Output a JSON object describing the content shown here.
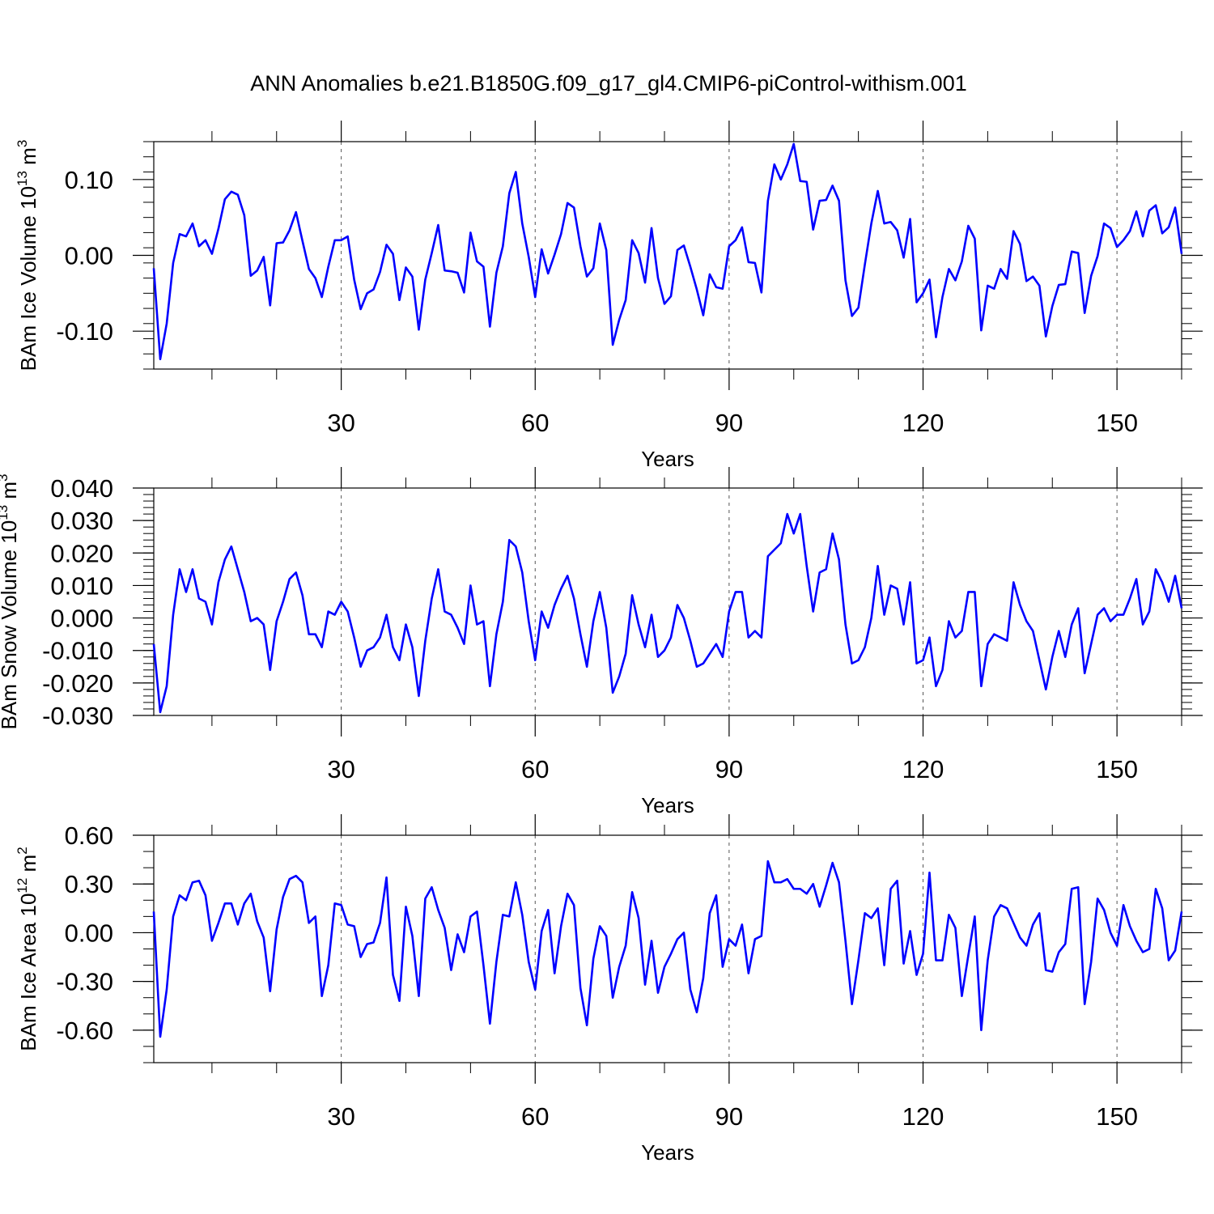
{
  "title": "ANN Anomalies b.e21.B1850G.f09_g17_gl4.CMIP6-piControl-withism.001",
  "line_color": "#0000ff",
  "chart_data": [
    {
      "type": "line",
      "panel": "ice-volume",
      "ylabel": {
        "prefix": "BAm Ice Volume 10",
        "exponent": "13",
        "unit": " m",
        "unit_exponent": "3"
      },
      "xlabel": "Years",
      "xlim": [
        1,
        160
      ],
      "ylim": [
        -0.15,
        0.15
      ],
      "x_major_ticks": [
        30,
        60,
        90,
        120,
        150
      ],
      "x_tick_labels": [
        "30",
        "60",
        "90",
        "120",
        "150"
      ],
      "x_minor_ticks": [
        10,
        20,
        40,
        50,
        70,
        80,
        100,
        110,
        130,
        140,
        160
      ],
      "y_major_ticks": [
        -0.1,
        0.0,
        0.1
      ],
      "y_tick_labels": [
        "-0.10",
        "0.00",
        "0.10"
      ],
      "y_minor_step": 0.02,
      "grid": "vertical dashed at major x ticks",
      "series": [
        {
          "values": [
            -0.017,
            -0.137,
            -0.09,
            -0.01,
            0.028,
            0.025,
            0.042,
            0.012,
            0.02,
            0.002,
            0.035,
            0.074,
            0.084,
            0.08,
            0.053,
            -0.027,
            -0.02,
            -0.002,
            -0.066,
            0.016,
            0.017,
            0.033,
            0.057,
            0.019,
            -0.018,
            -0.03,
            -0.055,
            -0.015,
            0.02,
            0.02,
            0.025,
            -0.032,
            -0.071,
            -0.05,
            -0.045,
            -0.022,
            0.014,
            0.002,
            -0.059,
            -0.016,
            -0.028,
            -0.098,
            -0.032,
            0.003,
            0.04,
            -0.02,
            -0.021,
            -0.023,
            -0.049,
            0.03,
            -0.008,
            -0.015,
            -0.094,
            -0.023,
            0.012,
            0.082,
            0.11,
            0.042,
            -0.002,
            -0.055,
            0.008,
            -0.024,
            0.001,
            0.028,
            0.069,
            0.063,
            0.012,
            -0.028,
            -0.017,
            0.042,
            0.007,
            -0.118,
            -0.085,
            -0.059,
            0.02,
            0.003,
            -0.036,
            0.036,
            -0.03,
            -0.064,
            -0.054,
            0.007,
            0.013,
            -0.015,
            -0.045,
            -0.079,
            -0.025,
            -0.042,
            -0.044,
            0.012,
            0.02,
            0.037,
            -0.009,
            -0.01,
            -0.049,
            0.072,
            0.12,
            0.1,
            0.12,
            0.147,
            0.098,
            0.097,
            0.034,
            0.072,
            0.073,
            0.092,
            0.072,
            -0.033,
            -0.08,
            -0.069,
            -0.012,
            0.042,
            0.085,
            0.042,
            0.044,
            0.033,
            -0.003,
            0.048,
            -0.062,
            -0.05,
            -0.032,
            -0.108,
            -0.055,
            -0.018,
            -0.033,
            -0.008,
            0.039,
            0.022,
            -0.099,
            -0.04,
            -0.044,
            -0.018,
            -0.031,
            0.032,
            0.015,
            -0.034,
            -0.028,
            -0.04,
            -0.107,
            -0.067,
            -0.039,
            -0.038,
            0.005,
            0.003,
            -0.076,
            -0.027,
            -0.001,
            0.042,
            0.036,
            0.011,
            0.02,
            0.032,
            0.058,
            0.025,
            0.059,
            0.066,
            0.029,
            0.037,
            0.063,
            0.002
          ]
        }
      ]
    },
    {
      "type": "line",
      "panel": "snow-volume",
      "ylabel": {
        "prefix": "BAm Snow Volume 10",
        "exponent": "13",
        "unit": " m",
        "unit_exponent": "3"
      },
      "xlabel": "Years",
      "xlim": [
        1,
        160
      ],
      "ylim": [
        -0.03,
        0.04
      ],
      "x_major_ticks": [
        30,
        60,
        90,
        120,
        150
      ],
      "x_tick_labels": [
        "30",
        "60",
        "90",
        "120",
        "150"
      ],
      "x_minor_ticks": [
        10,
        20,
        40,
        50,
        70,
        80,
        100,
        110,
        130,
        140,
        160
      ],
      "y_major_ticks": [
        -0.03,
        -0.02,
        -0.01,
        0.0,
        0.01,
        0.02,
        0.03,
        0.04
      ],
      "y_tick_labels": [
        "-0.030",
        "-0.020",
        "-0.010",
        "0.000",
        "0.010",
        "0.020",
        "0.030",
        "0.040"
      ],
      "y_minor_step": 0.002,
      "grid": "vertical dashed at major x ticks",
      "series": [
        {
          "values": [
            -0.008,
            -0.029,
            -0.021,
            0.001,
            0.015,
            0.008,
            0.015,
            0.006,
            0.005,
            -0.002,
            0.011,
            0.018,
            0.022,
            0.015,
            0.008,
            -0.001,
            0.0,
            -0.002,
            -0.016,
            -0.001,
            0.005,
            0.012,
            0.014,
            0.007,
            -0.005,
            -0.005,
            -0.009,
            0.002,
            0.001,
            0.005,
            0.002,
            -0.006,
            -0.015,
            -0.01,
            -0.009,
            -0.006,
            0.001,
            -0.009,
            -0.013,
            -0.002,
            -0.009,
            -0.024,
            -0.007,
            0.006,
            0.015,
            0.002,
            0.001,
            -0.003,
            -0.008,
            0.01,
            -0.002,
            -0.001,
            -0.021,
            -0.005,
            0.005,
            0.024,
            0.022,
            0.014,
            -0.001,
            -0.013,
            0.002,
            -0.003,
            0.004,
            0.009,
            0.013,
            0.006,
            -0.005,
            -0.015,
            -0.001,
            0.008,
            -0.003,
            -0.023,
            -0.018,
            -0.011,
            0.007,
            -0.002,
            -0.009,
            0.001,
            -0.012,
            -0.01,
            -0.006,
            0.004,
            0.0,
            -0.007,
            -0.015,
            -0.014,
            -0.011,
            -0.008,
            -0.012,
            0.002,
            0.008,
            0.008,
            -0.006,
            -0.004,
            -0.006,
            0.019,
            0.021,
            0.023,
            0.032,
            0.026,
            0.032,
            0.016,
            0.002,
            0.014,
            0.015,
            0.026,
            0.018,
            -0.002,
            -0.014,
            -0.013,
            -0.009,
            0.0,
            0.016,
            0.001,
            0.01,
            0.009,
            -0.002,
            0.011,
            -0.014,
            -0.013,
            -0.006,
            -0.021,
            -0.016,
            -0.001,
            -0.006,
            -0.004,
            0.008,
            0.008,
            -0.021,
            -0.008,
            -0.005,
            -0.006,
            -0.007,
            0.011,
            0.004,
            -0.001,
            -0.004,
            -0.013,
            -0.022,
            -0.012,
            -0.004,
            -0.012,
            -0.002,
            0.003,
            -0.017,
            -0.008,
            0.001,
            0.003,
            -0.001,
            0.001,
            0.001,
            0.006,
            0.012,
            -0.002,
            0.002,
            0.015,
            0.011,
            0.005,
            0.013,
            0.003
          ]
        }
      ]
    },
    {
      "type": "line",
      "panel": "ice-area",
      "ylabel": {
        "prefix": "BAm Ice Area 10",
        "exponent": "12",
        "unit": " m",
        "unit_exponent": "2"
      },
      "xlabel": "Years",
      "xlim": [
        1,
        160
      ],
      "ylim": [
        -0.8,
        0.6
      ],
      "x_major_ticks": [
        30,
        60,
        90,
        120,
        150
      ],
      "x_tick_labels": [
        "30",
        "60",
        "90",
        "120",
        "150"
      ],
      "x_minor_ticks": [
        10,
        20,
        40,
        50,
        70,
        80,
        100,
        110,
        130,
        140,
        160
      ],
      "y_major_ticks": [
        -0.6,
        -0.3,
        0.0,
        0.3,
        0.6
      ],
      "y_tick_labels": [
        "-0.60",
        "-0.30",
        "0.00",
        "0.30",
        "0.60"
      ],
      "y_minor_step": 0.1,
      "grid": "vertical dashed at major x ticks",
      "series": [
        {
          "values": [
            0.13,
            -0.64,
            -0.35,
            0.1,
            0.23,
            0.2,
            0.31,
            0.32,
            0.23,
            -0.05,
            0.06,
            0.18,
            0.18,
            0.05,
            0.18,
            0.24,
            0.07,
            -0.03,
            -0.36,
            0.02,
            0.22,
            0.33,
            0.35,
            0.31,
            0.06,
            0.1,
            -0.39,
            -0.2,
            0.18,
            0.17,
            0.05,
            0.04,
            -0.15,
            -0.07,
            -0.06,
            0.06,
            0.34,
            -0.26,
            -0.42,
            0.16,
            -0.02,
            -0.39,
            0.21,
            0.28,
            0.14,
            0.03,
            -0.23,
            -0.01,
            -0.12,
            0.1,
            0.13,
            -0.2,
            -0.56,
            -0.18,
            0.11,
            0.1,
            0.31,
            0.11,
            -0.18,
            -0.35,
            0.01,
            0.14,
            -0.25,
            0.04,
            0.24,
            0.17,
            -0.34,
            -0.57,
            -0.16,
            0.04,
            -0.02,
            -0.4,
            -0.21,
            -0.08,
            0.25,
            0.09,
            -0.32,
            -0.05,
            -0.37,
            -0.21,
            -0.13,
            -0.04,
            0.0,
            -0.35,
            -0.49,
            -0.28,
            0.12,
            0.23,
            -0.21,
            -0.04,
            -0.08,
            0.05,
            -0.25,
            -0.04,
            -0.02,
            0.44,
            0.31,
            0.31,
            0.33,
            0.27,
            0.27,
            0.24,
            0.3,
            0.16,
            0.29,
            0.43,
            0.31,
            -0.05,
            -0.44,
            -0.17,
            0.12,
            0.09,
            0.15,
            -0.2,
            0.27,
            0.32,
            -0.19,
            0.01,
            -0.26,
            -0.13,
            0.37,
            -0.17,
            -0.17,
            0.11,
            0.03,
            -0.39,
            -0.14,
            0.1,
            -0.6,
            -0.17,
            0.1,
            0.17,
            0.15,
            0.06,
            -0.03,
            -0.08,
            0.05,
            0.12,
            -0.23,
            -0.24,
            -0.12,
            -0.07,
            0.27,
            0.28,
            -0.44,
            -0.18,
            0.21,
            0.14,
            0.0,
            -0.08,
            0.17,
            0.04,
            -0.05,
            -0.12,
            -0.1,
            0.27,
            0.15,
            -0.17,
            -0.11,
            0.13
          ]
        }
      ]
    }
  ]
}
